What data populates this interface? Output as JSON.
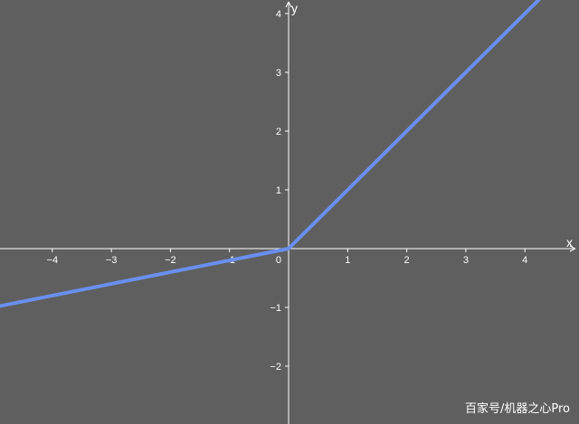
{
  "chart_data": {
    "type": "line",
    "xlabel": "x",
    "ylabel": "y",
    "xlim": [
      -4.9,
      4.9
    ],
    "ylim": [
      -2.95,
      4.2
    ],
    "x_ticks": [
      -4,
      -3,
      -2,
      -1,
      1,
      2,
      3,
      4
    ],
    "y_ticks": [
      -2,
      -1,
      1,
      2,
      3,
      4
    ],
    "x_tick_labels": [
      "−4",
      "−3",
      "−2",
      "−1",
      "1",
      "2",
      "3",
      "4"
    ],
    "y_tick_labels": [
      "−2",
      "−1",
      "1",
      "2",
      "3",
      "4"
    ],
    "origin_label": "0",
    "grid": false,
    "series": [
      {
        "x": [
          -4.9,
          0,
          4.3
        ],
        "y": [
          -0.98,
          0,
          4.3
        ],
        "color": "#6a8ff0"
      }
    ]
  },
  "colors": {
    "background": "#5f5f5f",
    "axes": "#ffffff",
    "line": "#6a8ff0"
  },
  "watermark": "百家号/机器之心Pro"
}
